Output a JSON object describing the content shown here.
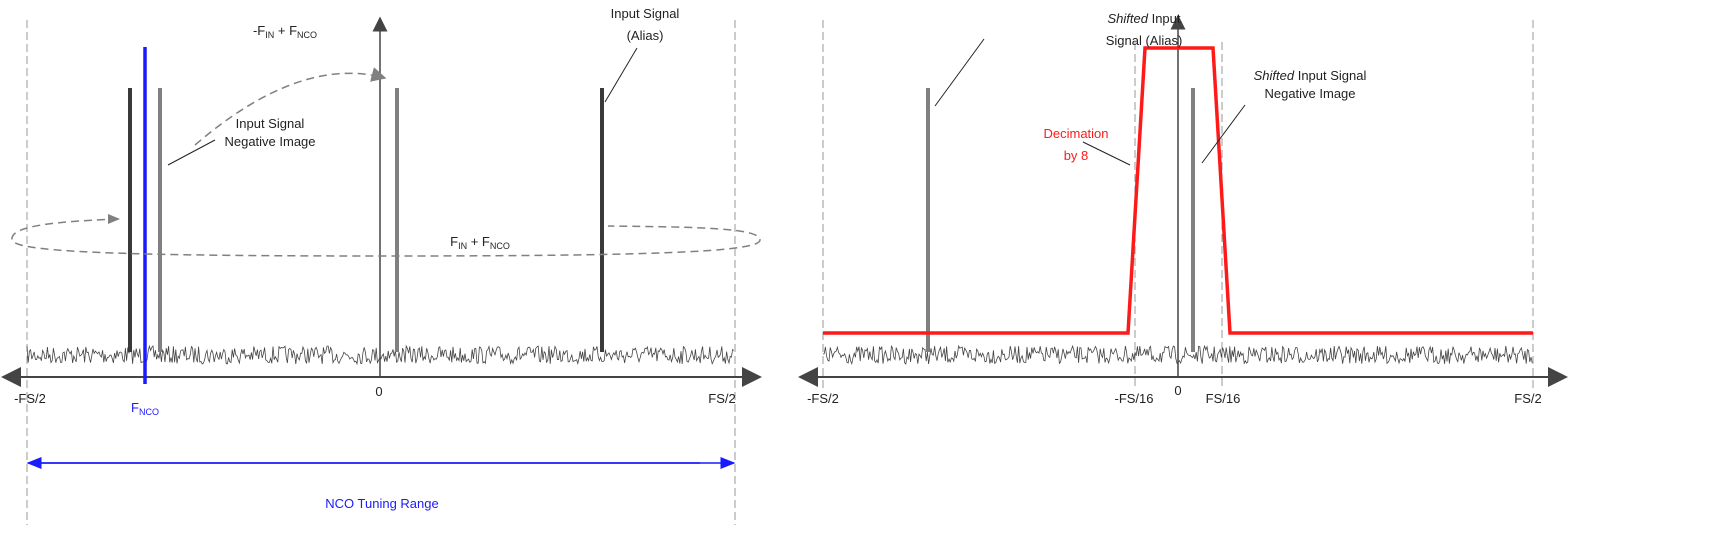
{
  "colors": {
    "nco": "#1a1aff",
    "filter": "#ff1a1a",
    "spike_dark": "#3a3a3a",
    "spike_gray": "#808080",
    "axis": "#444444"
  },
  "left": {
    "label_mix_neg": {
      "main1": "-F",
      "sub1": "IN",
      "mid": " + F",
      "sub2": "NCO"
    },
    "label_mix_pos": {
      "main1": "F",
      "sub1": "IN",
      "mid": " + F",
      "sub2": "NCO"
    },
    "label_alias": [
      "Input Signal",
      "(Alias)"
    ],
    "label_neg_image": [
      "Input Signal",
      "Negative Image"
    ],
    "ticks": {
      "neg": "-FS/2",
      "zero": "0",
      "pos": "FS/2"
    },
    "fnco": {
      "main": "F",
      "sub": "NCO"
    },
    "tuning_range": "NCO Tuning Range"
  },
  "right": {
    "label_alias": {
      "italic": "Shifted",
      "rest1": " Input",
      "line2": "Signal (Alias)"
    },
    "label_neg_image": {
      "italic": "Shifted",
      "rest1": " Input Signal",
      "line2": "Negative Image"
    },
    "label_filter": [
      "Decimation",
      "by 8"
    ],
    "ticks": {
      "neg": "-FS/2",
      "neg16": "-FS/16",
      "zero": "0",
      "pos16": "FS/16",
      "pos": "FS/2"
    }
  }
}
